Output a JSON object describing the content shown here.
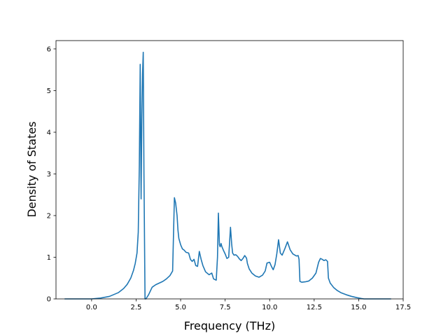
{
  "chart_data": {
    "type": "line",
    "title": "",
    "xlabel": "Frequency (THz)",
    "ylabel": "Density of States",
    "xlim": [
      -2.0,
      17.5
    ],
    "ylim": [
      0,
      6.2
    ],
    "xticks": [
      0.0,
      2.5,
      5.0,
      7.5,
      10.0,
      12.5,
      15.0,
      17.5
    ],
    "xtick_labels": [
      "0.0",
      "2.5",
      "5.0",
      "7.5",
      "10.0",
      "12.5",
      "15.0",
      "17.5"
    ],
    "yticks": [
      0,
      1,
      2,
      3,
      4,
      5,
      6
    ],
    "ytick_labels": [
      "0",
      "1",
      "2",
      "3",
      "4",
      "5",
      "6"
    ],
    "grid": false,
    "legend": "none",
    "series": [
      {
        "color": "#1f77b4",
        "x": [
          -1.5,
          -1.0,
          -0.5,
          0.0,
          0.5,
          1.0,
          1.5,
          1.8,
          2.0,
          2.2,
          2.35,
          2.45,
          2.55,
          2.62,
          2.68,
          2.73,
          2.78,
          2.82,
          2.86,
          2.9,
          2.94,
          3.0,
          3.05,
          3.2,
          3.4,
          3.6,
          3.8,
          4.0,
          4.2,
          4.4,
          4.55,
          4.65,
          4.72,
          4.8,
          4.85,
          4.9,
          5.0,
          5.1,
          5.2,
          5.3,
          5.45,
          5.55,
          5.65,
          5.75,
          5.85,
          5.95,
          6.05,
          6.15,
          6.25,
          6.4,
          6.6,
          6.75,
          6.85,
          7.0,
          7.07,
          7.12,
          7.18,
          7.22,
          7.27,
          7.32,
          7.4,
          7.5,
          7.6,
          7.7,
          7.8,
          7.87,
          7.92,
          8.0,
          8.1,
          8.2,
          8.3,
          8.4,
          8.5,
          8.6,
          8.7,
          8.75,
          8.85,
          9.0,
          9.2,
          9.4,
          9.6,
          9.75,
          9.85,
          10.0,
          10.1,
          10.2,
          10.3,
          10.4,
          10.5,
          10.6,
          10.7,
          10.85,
          11.0,
          11.15,
          11.3,
          11.5,
          11.6,
          11.65,
          11.7,
          11.8,
          12.0,
          12.2,
          12.4,
          12.6,
          12.75,
          12.85,
          12.95,
          13.05,
          13.15,
          13.25,
          13.3,
          13.4,
          13.6,
          13.8,
          14.0,
          14.3,
          14.6,
          14.9,
          15.15,
          15.3,
          16.0,
          16.8
        ],
        "y": [
          0.0,
          0.0,
          0.0,
          0.0,
          0.02,
          0.06,
          0.15,
          0.25,
          0.35,
          0.5,
          0.68,
          0.85,
          1.1,
          1.6,
          3.2,
          5.63,
          2.4,
          4.3,
          5.4,
          5.92,
          3.0,
          0.0,
          0.0,
          0.1,
          0.28,
          0.34,
          0.38,
          0.42,
          0.48,
          0.56,
          0.67,
          2.43,
          2.3,
          2.0,
          1.65,
          1.45,
          1.3,
          1.2,
          1.17,
          1.12,
          1.1,
          0.95,
          0.9,
          0.95,
          0.8,
          0.78,
          1.14,
          0.95,
          0.8,
          0.65,
          0.58,
          0.62,
          0.48,
          0.45,
          1.0,
          2.06,
          1.3,
          1.25,
          1.33,
          1.25,
          1.17,
          1.08,
          0.97,
          1.0,
          1.72,
          1.3,
          1.1,
          1.05,
          1.06,
          1.02,
          0.96,
          0.92,
          0.97,
          1.04,
          0.98,
          0.85,
          0.72,
          0.62,
          0.55,
          0.52,
          0.57,
          0.67,
          0.86,
          0.88,
          0.78,
          0.7,
          0.82,
          1.08,
          1.42,
          1.1,
          1.05,
          1.2,
          1.37,
          1.18,
          1.08,
          1.03,
          1.04,
          0.95,
          0.42,
          0.4,
          0.41,
          0.43,
          0.5,
          0.62,
          0.88,
          0.97,
          0.95,
          0.92,
          0.94,
          0.9,
          0.5,
          0.38,
          0.27,
          0.2,
          0.15,
          0.1,
          0.06,
          0.03,
          0.01,
          0.0,
          0.0,
          0.0
        ]
      }
    ]
  }
}
